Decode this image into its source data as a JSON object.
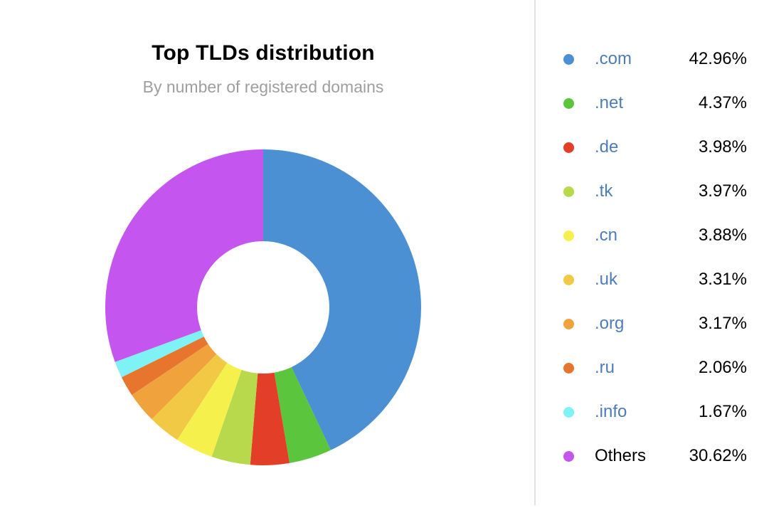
{
  "chart_data": {
    "type": "pie",
    "variant": "donut",
    "title": "Top TLDs distribution",
    "subtitle": "By number of registered domains",
    "start_angle_deg": 0,
    "direction": "clockwise",
    "inner_radius_ratio": 0.42,
    "legend_position": "right",
    "items": [
      {
        "label": ".com",
        "value": 42.96,
        "percent_label": "42.96%",
        "color": "#4A90D2",
        "is_link": true
      },
      {
        "label": ".net",
        "value": 4.37,
        "percent_label": "4.37%",
        "color": "#5BC63D",
        "is_link": true
      },
      {
        "label": ".de",
        "value": 3.98,
        "percent_label": "3.98%",
        "color": "#E33E28",
        "is_link": true
      },
      {
        "label": ".tk",
        "value": 3.97,
        "percent_label": "3.97%",
        "color": "#B7D94B",
        "is_link": true
      },
      {
        "label": ".cn",
        "value": 3.88,
        "percent_label": "3.88%",
        "color": "#F6F04C",
        "is_link": true
      },
      {
        "label": ".uk",
        "value": 3.31,
        "percent_label": "3.31%",
        "color": "#F1C944",
        "is_link": true
      },
      {
        "label": ".org",
        "value": 3.17,
        "percent_label": "3.17%",
        "color": "#F0A23C",
        "is_link": true
      },
      {
        "label": ".ru",
        "value": 2.06,
        "percent_label": "2.06%",
        "color": "#E8752E",
        "is_link": true
      },
      {
        "label": ".info",
        "value": 1.67,
        "percent_label": "1.67%",
        "color": "#7EF2F4",
        "is_link": true
      },
      {
        "label": "Others",
        "value": 30.62,
        "percent_label": "30.62%",
        "color": "#C455EE",
        "is_link": false
      }
    ]
  },
  "colors": {
    "background": "#FFFFFF",
    "title_text": "#000000",
    "subtitle_text": "#9E9E9E",
    "legend_link": "#4E7CB8",
    "legend_text": "#000000",
    "divider": "#E2E2E6"
  }
}
